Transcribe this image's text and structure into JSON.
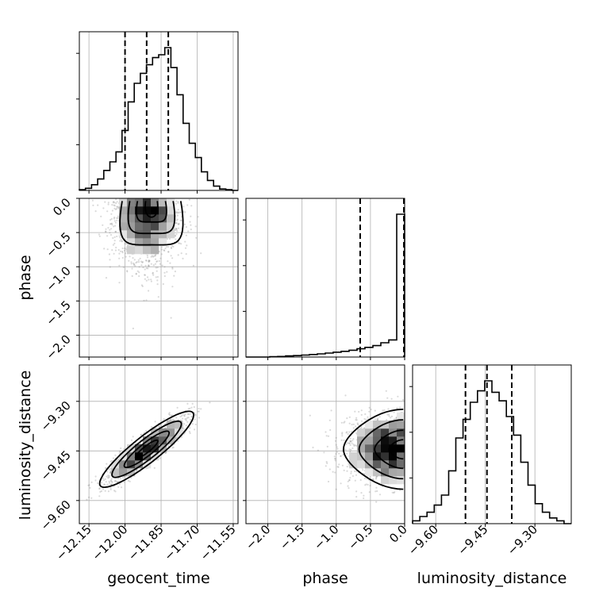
{
  "colors": {
    "line": "#000000",
    "grid": "#b0b0b0",
    "sample": "#7a7a7a",
    "bg": "#ffffff"
  },
  "chart_data": {
    "type": "corner",
    "parameters": [
      "geocent_time",
      "phase",
      "luminosity_distance"
    ],
    "grid": true,
    "ranges": {
      "geocent_time": [
        -12.19,
        -11.53
      ],
      "phase": [
        -2.32,
        0.0
      ],
      "luminosity_distance": [
        -9.67,
        -9.19
      ]
    },
    "ticks": {
      "geocent_time": {
        "values": [
          -12.15,
          -12.0,
          -11.85,
          -11.7,
          -11.55
        ],
        "labels": [
          "−12.15",
          "−12.00",
          "−11.85",
          "−11.70",
          "−11.55"
        ]
      },
      "phase": {
        "values": [
          -2.0,
          -1.5,
          -1.0,
          -0.5,
          0.0
        ],
        "labels": [
          "−2.0",
          "−1.5",
          "−1.0",
          "−0.5",
          "0.0"
        ]
      },
      "luminosity_distance": {
        "values": [
          -9.6,
          -9.45,
          -9.3
        ],
        "labels": [
          "−9.60",
          "−9.45",
          "−9.30"
        ]
      }
    },
    "quantiles": {
      "geocent_time": [
        -12.0,
        -11.91,
        -11.82
      ],
      "phase": [
        -0.65,
        -0.005,
        0.0
      ],
      "luminosity_distance": [
        -9.51,
        -9.445,
        -9.37
      ]
    },
    "marginals": [
      {
        "parameter": "geocent_time",
        "range": [
          -12.19,
          -11.53
        ],
        "density": [
          0.005,
          0.015,
          0.04,
          0.08,
          0.14,
          0.2,
          0.27,
          0.42,
          0.62,
          0.75,
          0.82,
          0.88,
          0.93,
          0.95,
          1.0,
          0.86,
          0.67,
          0.47,
          0.33,
          0.23,
          0.13,
          0.07,
          0.03,
          0.01,
          0.005,
          0.0
        ]
      },
      {
        "parameter": "phase",
        "range": [
          -2.32,
          0.0
        ],
        "density": [
          0.0,
          0.0,
          0.0,
          0.002,
          0.004,
          0.008,
          0.01,
          0.014,
          0.018,
          0.022,
          0.028,
          0.034,
          0.04,
          0.048,
          0.058,
          0.068,
          0.08,
          0.1,
          0.12,
          1.0
        ]
      },
      {
        "parameter": "luminosity_distance",
        "range": [
          -9.67,
          -9.19
        ],
        "density": [
          0.02,
          0.05,
          0.08,
          0.13,
          0.2,
          0.37,
          0.6,
          0.73,
          0.85,
          0.93,
          1.0,
          0.92,
          0.86,
          0.75,
          0.62,
          0.43,
          0.27,
          0.14,
          0.08,
          0.04,
          0.02,
          0.0
        ]
      }
    ],
    "joints": [
      {
        "x": "geocent_time",
        "y": "phase",
        "mean": [
          -11.91,
          -0.22
        ],
        "sd": [
          0.07,
          0.45
        ],
        "peak": [
          -11.89,
          -0.04
        ]
      },
      {
        "x": "geocent_time",
        "y": "luminosity_distance",
        "mean": [
          -11.91,
          -9.445
        ],
        "sd": [
          0.085,
          0.05
        ],
        "correlation": 0.9
      },
      {
        "x": "phase",
        "y": "luminosity_distance",
        "mean": [
          -0.25,
          -9.445
        ],
        "sd": [
          0.4,
          0.05
        ],
        "peak": [
          -0.02,
          -9.445
        ]
      }
    ]
  }
}
